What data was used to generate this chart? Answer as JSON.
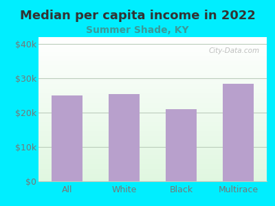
{
  "title": "Median per capita income in 2022",
  "subtitle": "Summer Shade, KY",
  "categories": [
    "All",
    "White",
    "Black",
    "Multirace"
  ],
  "values": [
    25000,
    25500,
    21000,
    28500
  ],
  "bar_color": "#b8a0cc",
  "title_color": "#333333",
  "subtitle_color": "#3a9a9a",
  "background_outer": "#00eeff",
  "yticks": [
    0,
    10000,
    20000,
    30000,
    40000
  ],
  "ylim": [
    0,
    42000
  ],
  "grid_color": "#bbccbb",
  "tick_color": "#777777",
  "watermark": "City-Data.com",
  "title_fontsize": 13,
  "subtitle_fontsize": 10
}
